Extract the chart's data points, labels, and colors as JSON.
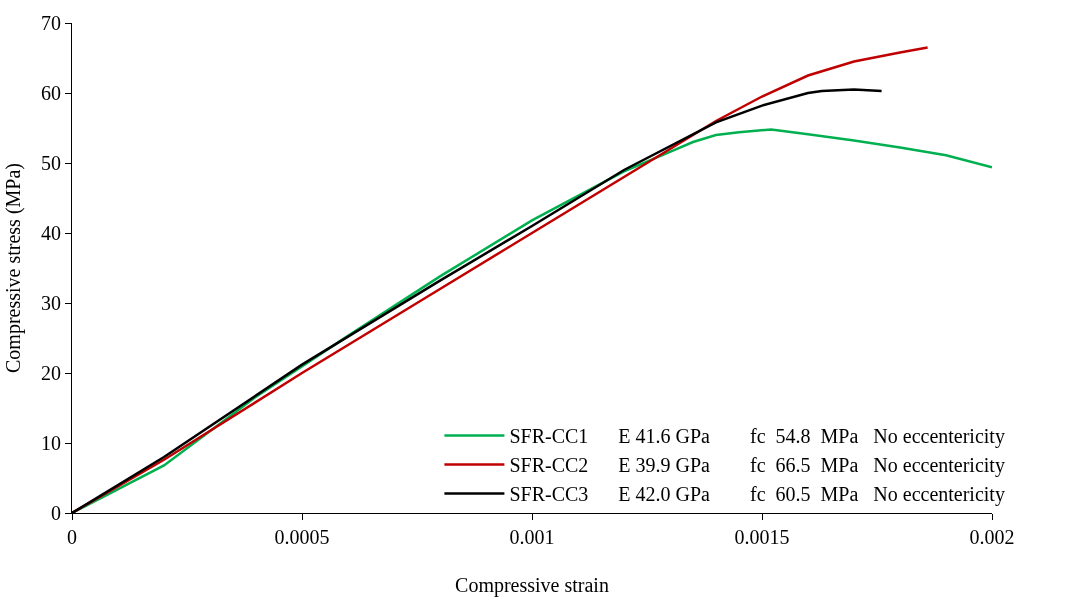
{
  "chart_data": {
    "type": "line",
    "xlabel": "Compressive strain",
    "ylabel": "Compressive stress (MPa)",
    "xlim": [
      0,
      0.002
    ],
    "xticks": [
      0,
      0.0005,
      0.001,
      0.0015,
      0.002
    ],
    "ylim": [
      0,
      70
    ],
    "yticks": [
      0,
      10,
      20,
      30,
      40,
      50,
      60,
      70
    ],
    "legend": "bottom right",
    "marker": "none",
    "line_style": "solid",
    "series": [
      {
        "name": "SFR-CC1      E 41.6 GPa        fc  54.8  MPa   No eccentericity",
        "color": "#00b050",
        "x": [
          0,
          0.0002,
          0.0004,
          0.0006,
          0.0008,
          0.001,
          0.0012,
          0.0013,
          0.00135,
          0.0014,
          0.00145,
          0.00152,
          0.0016,
          0.0017,
          0.0018,
          0.0019,
          0.002
        ],
        "values": [
          0,
          6.8,
          16.6,
          25.3,
          33.8,
          41.8,
          48.8,
          51.6,
          53,
          54,
          54.4,
          54.8,
          54.1,
          53.2,
          52.2,
          51.1,
          49.4
        ]
      },
      {
        "name": "SFR-CC2      E 39.9 GPa        fc  66.5  MPa   No eccentericity",
        "color": "#c00000",
        "x": [
          0,
          0.0002,
          0.0005,
          0.0008,
          0.001,
          0.0012,
          0.0014,
          0.0015,
          0.0016,
          0.0017,
          0.0018,
          0.00186
        ],
        "values": [
          0,
          7.6,
          20,
          32,
          40,
          48,
          56,
          59.5,
          62.5,
          64.5,
          65.8,
          66.5
        ]
      },
      {
        "name": "SFR-CC3      E 42.0 GPa        fc  60.5  MPa   No eccentericity",
        "color": "#000000",
        "x": [
          0,
          0.0002,
          0.0005,
          0.0008,
          0.001,
          0.0012,
          0.0014,
          0.0015,
          0.0016,
          0.00163,
          0.0017,
          0.00176
        ],
        "values": [
          0,
          8,
          21.2,
          33.2,
          41,
          49,
          55.8,
          58.2,
          60,
          60.3,
          60.5,
          60.3
        ]
      }
    ]
  }
}
